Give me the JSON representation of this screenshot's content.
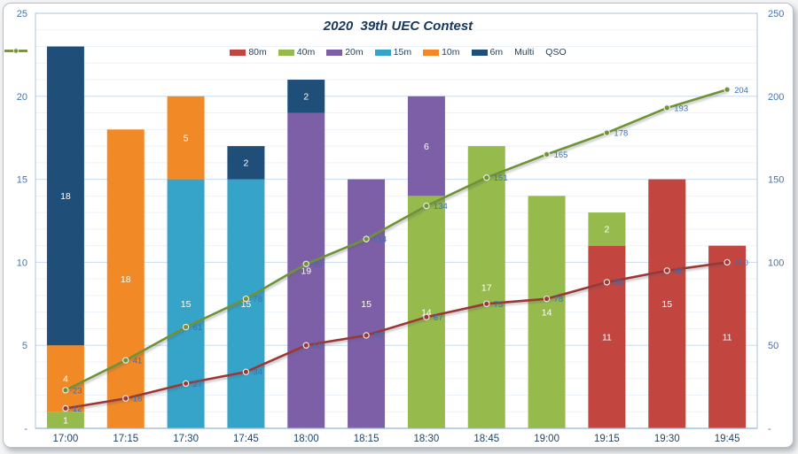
{
  "title": "2020  39th UEC Contest",
  "chart_data": {
    "type": "bar",
    "subtype": "stacked-bars-with-cumulative-lines",
    "title": "2020  39th UEC Contest",
    "legend_position": "top",
    "grid": "on",
    "categories": [
      "17:00",
      "17:15",
      "17:30",
      "17:45",
      "18:00",
      "18:15",
      "18:30",
      "18:45",
      "19:00",
      "19:15",
      "19:30",
      "19:45"
    ],
    "series": [
      {
        "name": "80m",
        "color": "#c2463f",
        "values": [
          0,
          0,
          0,
          0,
          0,
          0,
          0,
          0,
          0,
          11,
          15,
          11
        ]
      },
      {
        "name": "40m",
        "color": "#96bb4c",
        "values": [
          1,
          0,
          0,
          0,
          0,
          0,
          14,
          17,
          14,
          2,
          0,
          0
        ]
      },
      {
        "name": "20m",
        "color": "#7d5fa7",
        "values": [
          0,
          0,
          0,
          0,
          19,
          15,
          6,
          0,
          0,
          0,
          0,
          0
        ]
      },
      {
        "name": "15m",
        "color": "#35a4c8",
        "values": [
          0,
          0,
          15,
          15,
          0,
          0,
          0,
          0,
          0,
          0,
          0,
          0
        ]
      },
      {
        "name": "10m",
        "color": "#f18a26",
        "values": [
          4,
          18,
          5,
          0,
          0,
          0,
          0,
          0,
          0,
          0,
          0,
          0
        ]
      },
      {
        "name": "6m",
        "color": "#1f4e79",
        "values": [
          18,
          0,
          0,
          2,
          2,
          0,
          0,
          0,
          0,
          0,
          0,
          0
        ]
      }
    ],
    "line_series": [
      {
        "name": "Multi",
        "color": "#9a3734",
        "axis": "right",
        "values": [
          12,
          18,
          27,
          34,
          50,
          56,
          67,
          75,
          78,
          88,
          95,
          100
        ]
      },
      {
        "name": "QSO",
        "color": "#6e9334",
        "axis": "right",
        "values": [
          23,
          41,
          61,
          78,
          99,
          114,
          134,
          151,
          165,
          178,
          193,
          204
        ]
      }
    ],
    "left_axis": {
      "min": 0,
      "max": 25,
      "major_step": 5,
      "minor_step": 1,
      "tick_labels": [
        "-",
        "5",
        "10",
        "15",
        "20",
        "25"
      ]
    },
    "right_axis": {
      "min": 0,
      "max": 250,
      "major_step": 50,
      "tick_labels": [
        "-",
        "50",
        "100",
        "150",
        "200",
        "250"
      ]
    },
    "stack_order_bottom_to_top": [
      "80m",
      "40m",
      "20m",
      "15m",
      "10m",
      "6m"
    ]
  },
  "styles": {
    "title_color": "#17375d",
    "axis_number_color": "#3e74b8",
    "x_label_color": "#1f4466",
    "bar_label_color": "#ffffff",
    "data_label_color": "#3a6fb5",
    "grid_minor_color": "#edf3fb",
    "grid_major_color": "#c9dcf0",
    "axis_line_color": "#95b3d7",
    "plot_border_color": "#a9c4e2"
  }
}
